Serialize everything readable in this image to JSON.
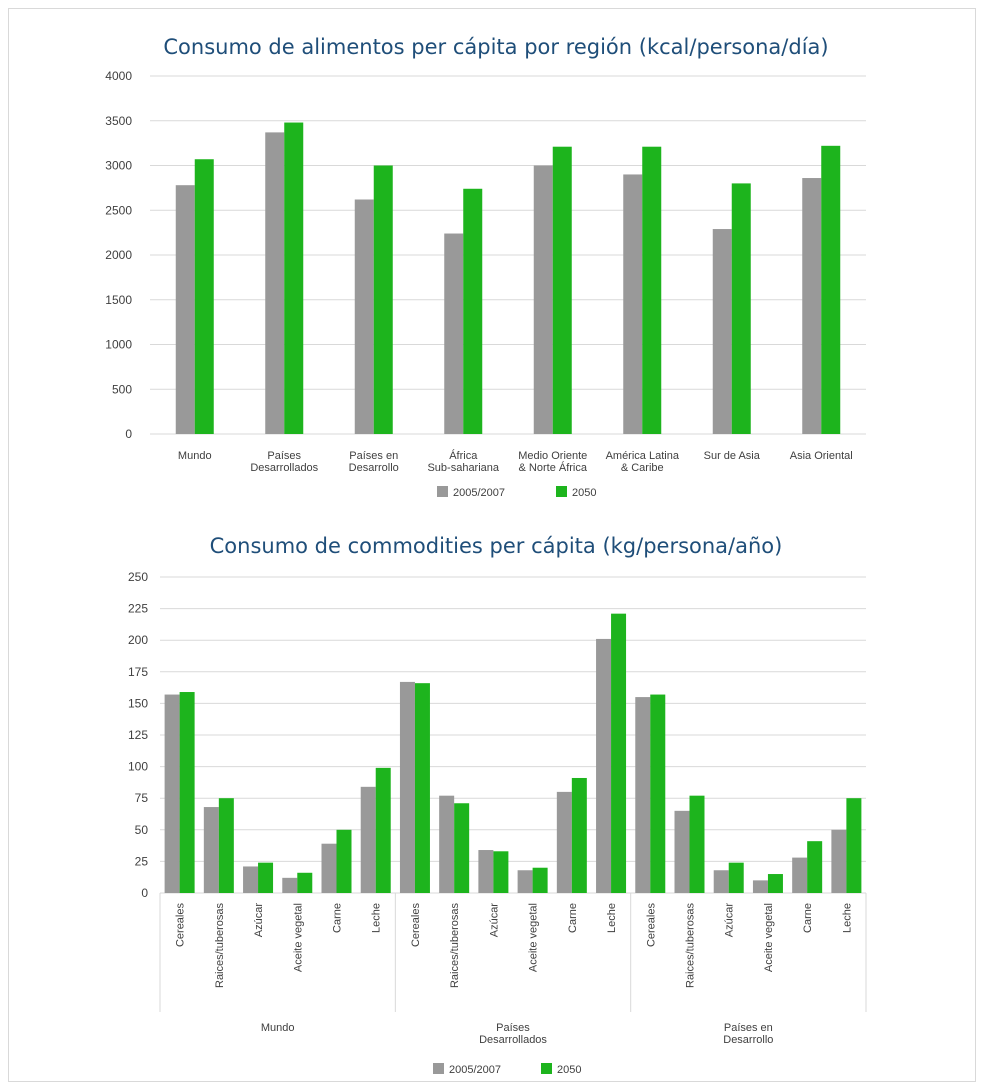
{
  "colors": {
    "series_2005": "#999999",
    "series_2050": "#1db41d"
  },
  "chart_data": [
    {
      "type": "bar",
      "title": "Consumo de alimentos per cápita por región (kcal/persona/día)",
      "categories": [
        [
          "Mundo"
        ],
        [
          "Países",
          "Desarrollados"
        ],
        [
          "Países en",
          "Desarrollo"
        ],
        [
          "África",
          "Sub-sahariana"
        ],
        [
          "Medio Oriente",
          "& Norte África"
        ],
        [
          "América Latina",
          "& Caribe"
        ],
        [
          "Sur de Asia"
        ],
        [
          "Asia Oriental"
        ]
      ],
      "series": [
        {
          "name": "2005/2007",
          "values": [
            2780,
            3370,
            2620,
            2240,
            3000,
            2900,
            2290,
            2860
          ]
        },
        {
          "name": "2050",
          "values": [
            3070,
            3480,
            3000,
            2740,
            3210,
            3210,
            2800,
            3220
          ]
        }
      ],
      "ylim": [
        0,
        4000
      ],
      "yticks": [
        "0",
        "500",
        "1000",
        "1500",
        "2000",
        "2500",
        "3000",
        "3500",
        "4000"
      ],
      "grid": true,
      "legend": "bottom"
    },
    {
      "type": "bar",
      "title": "Consumo de commodities per cápita (kg/persona/año)",
      "groups": [
        {
          "label": [
            "Mundo"
          ]
        },
        {
          "label": [
            "Países",
            "Desarrollados"
          ]
        },
        {
          "label": [
            "Países en",
            "Desarrollo"
          ]
        }
      ],
      "categories": [
        "Cereales",
        "Raices/tuberosas",
        "Azúcar",
        "Aceite vegetal",
        "Carne",
        "Leche"
      ],
      "series": [
        {
          "name": "2005/2007",
          "values": [
            [
              157,
              68,
              21,
              12,
              39,
              84
            ],
            [
              167,
              77,
              34,
              18,
              80,
              201
            ],
            [
              155,
              65,
              18,
              10,
              28,
              50
            ]
          ]
        },
        {
          "name": "2050",
          "values": [
            [
              159,
              75,
              24,
              16,
              50,
              99
            ],
            [
              166,
              71,
              33,
              20,
              91,
              221
            ],
            [
              157,
              77,
              24,
              15,
              41,
              75
            ]
          ]
        }
      ],
      "ylim": [
        0,
        250
      ],
      "yticks": [
        "0",
        "25",
        "50",
        "75",
        "100",
        "125",
        "150",
        "175",
        "200",
        "225",
        "250"
      ],
      "grid": true,
      "legend": "bottom"
    }
  ]
}
